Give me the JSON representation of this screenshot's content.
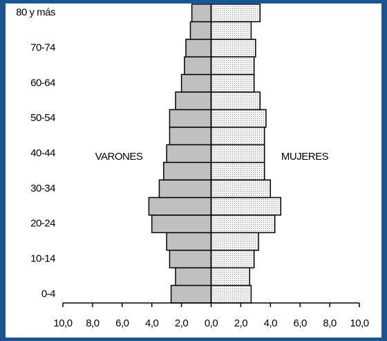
{
  "chart_data": {
    "type": "pyramid",
    "categories": [
      "0-4",
      null,
      "10-14",
      null,
      "20-24",
      null,
      "30-34",
      null,
      "40-44",
      null,
      "50-54",
      null,
      "60-64",
      null,
      "70-74",
      null,
      "80 y más"
    ],
    "series": [
      {
        "name": "VARONES",
        "color": "#c0c0c0",
        "side": "left",
        "values": [
          2.7,
          2.4,
          2.8,
          3.0,
          4.0,
          4.2,
          3.5,
          3.2,
          3.0,
          2.8,
          2.8,
          2.4,
          2.0,
          1.8,
          1.7,
          1.4,
          1.3
        ]
      },
      {
        "name": "MUJERES",
        "color": "#e6e6e6",
        "side": "right",
        "values": [
          2.7,
          2.6,
          2.9,
          3.2,
          4.3,
          4.7,
          4.0,
          3.6,
          3.6,
          3.6,
          3.7,
          3.3,
          2.9,
          2.9,
          3.0,
          2.7,
          3.3
        ]
      }
    ],
    "xlim": [
      -10,
      10
    ],
    "xticks": [
      {
        "value": -10,
        "label": "10,0"
      },
      {
        "value": -8,
        "label": "8,0"
      },
      {
        "value": -6,
        "label": "6,0"
      },
      {
        "value": -4,
        "label": "4,0"
      },
      {
        "value": -2,
        "label": "2,0"
      },
      {
        "value": 0,
        "label": "0,0"
      },
      {
        "value": 2,
        "label": "2,0"
      },
      {
        "value": 4,
        "label": "4,0"
      },
      {
        "value": 6,
        "label": "6,0"
      },
      {
        "value": 8,
        "label": "8,0"
      },
      {
        "value": 10,
        "label": "10,0"
      }
    ]
  }
}
